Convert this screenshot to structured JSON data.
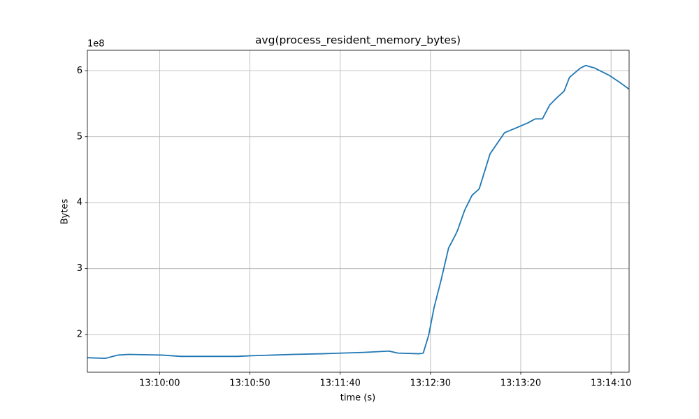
{
  "chart_data": {
    "type": "line",
    "title": "avg(process_resident_memory_bytes)",
    "x_label": "time (s)",
    "y_label": "Bytes",
    "y_offset_label": "1e8",
    "x": [
      "13:09:20",
      "13:09:30",
      "13:09:37",
      "13:09:43",
      "13:10:01",
      "13:10:12",
      "13:10:28",
      "13:10:43",
      "13:10:51",
      "13:11:03",
      "13:11:14",
      "13:11:30",
      "13:11:41",
      "13:11:53",
      "13:12:07",
      "13:12:12",
      "13:12:24",
      "13:12:26",
      "13:12:29",
      "13:12:32",
      "13:12:36",
      "13:12:40",
      "13:12:44",
      "13:12:45",
      "13:12:49",
      "13:12:53",
      "13:12:57",
      "13:13:03",
      "13:13:07",
      "13:13:11",
      "13:13:18",
      "13:13:24",
      "13:13:28",
      "13:13:32",
      "13:13:36",
      "13:13:40",
      "13:13:44",
      "13:13:47",
      "13:13:53",
      "13:13:56",
      "13:14:01",
      "13:14:09",
      "13:14:15",
      "13:14:20"
    ],
    "series": [
      {
        "name": "avg(process_resident_memory_bytes)",
        "color": "#1f77b4",
        "values": [
          1.65,
          1.64,
          1.69,
          1.7,
          1.69,
          1.67,
          1.67,
          1.67,
          1.68,
          1.69,
          1.7,
          1.71,
          1.72,
          1.73,
          1.75,
          1.72,
          1.71,
          1.72,
          1.99,
          2.41,
          2.84,
          3.31,
          3.52,
          3.58,
          3.89,
          4.11,
          4.21,
          4.74,
          4.9,
          5.06,
          5.14,
          5.21,
          5.27,
          5.27,
          5.48,
          5.59,
          5.69,
          5.9,
          6.04,
          6.08,
          6.04,
          5.93,
          5.82,
          5.72
        ]
      }
    ],
    "xlim": [
      "13:09:20",
      "13:14:20"
    ],
    "xticks": [
      "13:10:00",
      "13:10:50",
      "13:11:40",
      "13:12:30",
      "13:13:20",
      "13:14:10"
    ],
    "ylim": [
      1.43,
      6.31
    ],
    "yticks": [
      2,
      3,
      4,
      5,
      6
    ],
    "grid": true
  }
}
